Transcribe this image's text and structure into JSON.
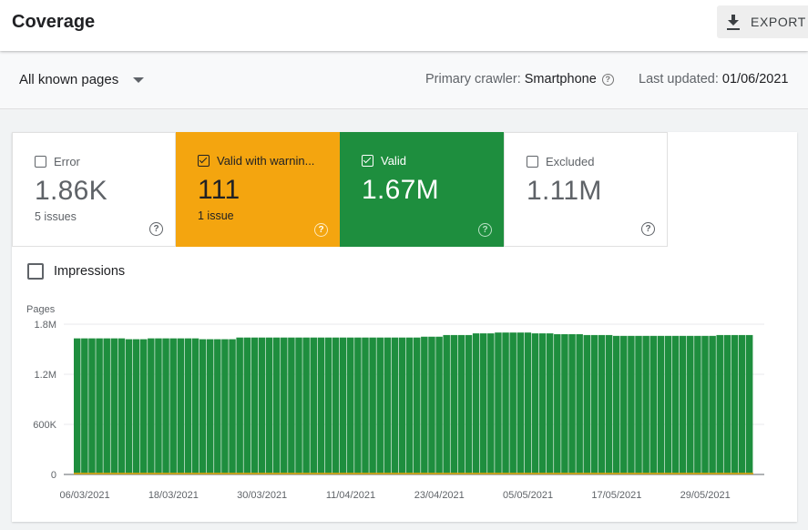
{
  "header": {
    "title": "Coverage",
    "export_label": "EXPORT"
  },
  "filters": {
    "pages_dropdown": "All known pages",
    "crawler_label": "Primary crawler:",
    "crawler_value": "Smartphone",
    "updated_label": "Last updated:",
    "updated_value": "01/06/2021"
  },
  "cards": [
    {
      "label": "Error",
      "value": "1.86K",
      "sub": "5 issues",
      "checked": false,
      "color": "#ffffff"
    },
    {
      "label": "Valid with warnin...",
      "value": "111",
      "sub": "1 issue",
      "checked": true,
      "color": "#f4a50f"
    },
    {
      "label": "Valid",
      "value": "1.67M",
      "sub": "",
      "checked": true,
      "color": "#1e8e3e"
    },
    {
      "label": "Excluded",
      "value": "1.11M",
      "sub": "",
      "checked": false,
      "color": "#ffffff"
    }
  ],
  "impressions_label": "Impressions",
  "colors": {
    "valid_bar": "#1e8e3e",
    "warning_line": "#f4a50f",
    "grid": "#e8eaed"
  },
  "chart_data": {
    "type": "bar",
    "ylabel": "Pages",
    "ylim": [
      0,
      1800000
    ],
    "yticks": [
      "0",
      "600K",
      "1.2M",
      "1.8M"
    ],
    "ytick_values": [
      0,
      600000,
      1200000,
      1800000
    ],
    "xtick_labels": [
      "06/03/2021",
      "18/03/2021",
      "30/03/2021",
      "11/04/2021",
      "23/04/2021",
      "05/05/2021",
      "17/05/2021",
      "29/05/2021"
    ],
    "xtick_indices": [
      0,
      12,
      24,
      36,
      48,
      60,
      72,
      84
    ],
    "series": [
      {
        "name": "Valid",
        "values": [
          1630000,
          1630000,
          1630000,
          1630000,
          1630000,
          1630000,
          1630000,
          1620000,
          1620000,
          1620000,
          1630000,
          1630000,
          1630000,
          1630000,
          1630000,
          1630000,
          1630000,
          1620000,
          1620000,
          1620000,
          1620000,
          1620000,
          1640000,
          1640000,
          1640000,
          1640000,
          1640000,
          1640000,
          1640000,
          1640000,
          1640000,
          1640000,
          1640000,
          1640000,
          1640000,
          1640000,
          1640000,
          1640000,
          1640000,
          1640000,
          1640000,
          1640000,
          1640000,
          1640000,
          1640000,
          1640000,
          1640000,
          1650000,
          1650000,
          1650000,
          1670000,
          1670000,
          1670000,
          1670000,
          1690000,
          1690000,
          1690000,
          1700000,
          1700000,
          1700000,
          1700000,
          1700000,
          1690000,
          1690000,
          1690000,
          1680000,
          1680000,
          1680000,
          1680000,
          1670000,
          1670000,
          1670000,
          1670000,
          1660000,
          1660000,
          1660000,
          1660000,
          1660000,
          1660000,
          1660000,
          1660000,
          1660000,
          1660000,
          1660000,
          1660000,
          1660000,
          1660000,
          1670000,
          1670000,
          1670000,
          1670000,
          1670000
        ]
      },
      {
        "name": "Valid with warnings",
        "values": [
          111,
          111,
          111,
          111,
          111,
          111,
          111,
          111,
          111,
          111,
          111,
          111,
          111,
          111,
          111,
          111,
          111,
          111,
          111,
          111,
          111,
          111,
          111,
          111,
          111,
          111,
          111,
          111,
          111,
          111,
          111,
          111,
          111,
          111,
          111,
          111,
          111,
          111,
          111,
          111,
          111,
          111,
          111,
          111,
          111,
          111,
          111,
          111,
          111,
          111,
          111,
          111,
          111,
          111,
          111,
          111,
          111,
          111,
          111,
          111,
          111,
          111,
          111,
          111,
          111,
          111,
          111,
          111,
          111,
          111,
          111,
          111,
          111,
          111,
          111,
          111,
          111,
          111,
          111,
          111,
          111,
          111,
          111,
          111,
          111,
          111,
          111,
          111,
          111,
          111,
          111,
          111
        ]
      }
    ]
  }
}
